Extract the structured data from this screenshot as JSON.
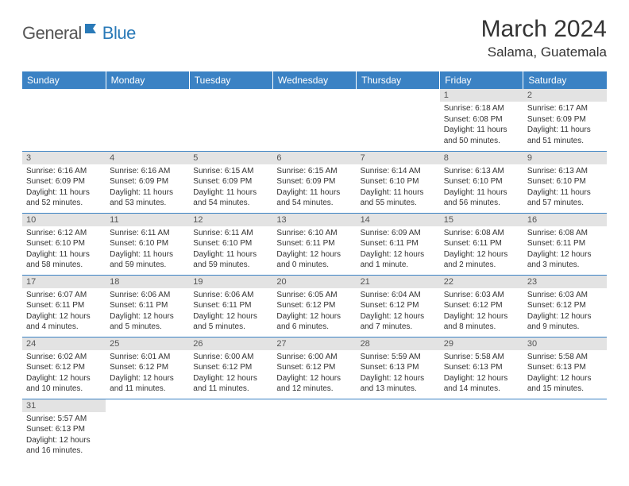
{
  "logo": {
    "general": "General",
    "blue": "Blue"
  },
  "header": {
    "month": "March 2024",
    "location": "Salama, Guatemala"
  },
  "colors": {
    "header_bg": "#3b82c4",
    "daynum_bg": "#e3e3e3",
    "border": "#3b82c4"
  },
  "days_of_week": [
    "Sunday",
    "Monday",
    "Tuesday",
    "Wednesday",
    "Thursday",
    "Friday",
    "Saturday"
  ],
  "weeks": [
    [
      null,
      null,
      null,
      null,
      null,
      {
        "n": "1",
        "sr": "Sunrise: 6:18 AM",
        "ss": "Sunset: 6:08 PM",
        "dl": "Daylight: 11 hours and 50 minutes."
      },
      {
        "n": "2",
        "sr": "Sunrise: 6:17 AM",
        "ss": "Sunset: 6:09 PM",
        "dl": "Daylight: 11 hours and 51 minutes."
      }
    ],
    [
      {
        "n": "3",
        "sr": "Sunrise: 6:16 AM",
        "ss": "Sunset: 6:09 PM",
        "dl": "Daylight: 11 hours and 52 minutes."
      },
      {
        "n": "4",
        "sr": "Sunrise: 6:16 AM",
        "ss": "Sunset: 6:09 PM",
        "dl": "Daylight: 11 hours and 53 minutes."
      },
      {
        "n": "5",
        "sr": "Sunrise: 6:15 AM",
        "ss": "Sunset: 6:09 PM",
        "dl": "Daylight: 11 hours and 54 minutes."
      },
      {
        "n": "6",
        "sr": "Sunrise: 6:15 AM",
        "ss": "Sunset: 6:09 PM",
        "dl": "Daylight: 11 hours and 54 minutes."
      },
      {
        "n": "7",
        "sr": "Sunrise: 6:14 AM",
        "ss": "Sunset: 6:10 PM",
        "dl": "Daylight: 11 hours and 55 minutes."
      },
      {
        "n": "8",
        "sr": "Sunrise: 6:13 AM",
        "ss": "Sunset: 6:10 PM",
        "dl": "Daylight: 11 hours and 56 minutes."
      },
      {
        "n": "9",
        "sr": "Sunrise: 6:13 AM",
        "ss": "Sunset: 6:10 PM",
        "dl": "Daylight: 11 hours and 57 minutes."
      }
    ],
    [
      {
        "n": "10",
        "sr": "Sunrise: 6:12 AM",
        "ss": "Sunset: 6:10 PM",
        "dl": "Daylight: 11 hours and 58 minutes."
      },
      {
        "n": "11",
        "sr": "Sunrise: 6:11 AM",
        "ss": "Sunset: 6:10 PM",
        "dl": "Daylight: 11 hours and 59 minutes."
      },
      {
        "n": "12",
        "sr": "Sunrise: 6:11 AM",
        "ss": "Sunset: 6:10 PM",
        "dl": "Daylight: 11 hours and 59 minutes."
      },
      {
        "n": "13",
        "sr": "Sunrise: 6:10 AM",
        "ss": "Sunset: 6:11 PM",
        "dl": "Daylight: 12 hours and 0 minutes."
      },
      {
        "n": "14",
        "sr": "Sunrise: 6:09 AM",
        "ss": "Sunset: 6:11 PM",
        "dl": "Daylight: 12 hours and 1 minute."
      },
      {
        "n": "15",
        "sr": "Sunrise: 6:08 AM",
        "ss": "Sunset: 6:11 PM",
        "dl": "Daylight: 12 hours and 2 minutes."
      },
      {
        "n": "16",
        "sr": "Sunrise: 6:08 AM",
        "ss": "Sunset: 6:11 PM",
        "dl": "Daylight: 12 hours and 3 minutes."
      }
    ],
    [
      {
        "n": "17",
        "sr": "Sunrise: 6:07 AM",
        "ss": "Sunset: 6:11 PM",
        "dl": "Daylight: 12 hours and 4 minutes."
      },
      {
        "n": "18",
        "sr": "Sunrise: 6:06 AM",
        "ss": "Sunset: 6:11 PM",
        "dl": "Daylight: 12 hours and 5 minutes."
      },
      {
        "n": "19",
        "sr": "Sunrise: 6:06 AM",
        "ss": "Sunset: 6:11 PM",
        "dl": "Daylight: 12 hours and 5 minutes."
      },
      {
        "n": "20",
        "sr": "Sunrise: 6:05 AM",
        "ss": "Sunset: 6:12 PM",
        "dl": "Daylight: 12 hours and 6 minutes."
      },
      {
        "n": "21",
        "sr": "Sunrise: 6:04 AM",
        "ss": "Sunset: 6:12 PM",
        "dl": "Daylight: 12 hours and 7 minutes."
      },
      {
        "n": "22",
        "sr": "Sunrise: 6:03 AM",
        "ss": "Sunset: 6:12 PM",
        "dl": "Daylight: 12 hours and 8 minutes."
      },
      {
        "n": "23",
        "sr": "Sunrise: 6:03 AM",
        "ss": "Sunset: 6:12 PM",
        "dl": "Daylight: 12 hours and 9 minutes."
      }
    ],
    [
      {
        "n": "24",
        "sr": "Sunrise: 6:02 AM",
        "ss": "Sunset: 6:12 PM",
        "dl": "Daylight: 12 hours and 10 minutes."
      },
      {
        "n": "25",
        "sr": "Sunrise: 6:01 AM",
        "ss": "Sunset: 6:12 PM",
        "dl": "Daylight: 12 hours and 11 minutes."
      },
      {
        "n": "26",
        "sr": "Sunrise: 6:00 AM",
        "ss": "Sunset: 6:12 PM",
        "dl": "Daylight: 12 hours and 11 minutes."
      },
      {
        "n": "27",
        "sr": "Sunrise: 6:00 AM",
        "ss": "Sunset: 6:12 PM",
        "dl": "Daylight: 12 hours and 12 minutes."
      },
      {
        "n": "28",
        "sr": "Sunrise: 5:59 AM",
        "ss": "Sunset: 6:13 PM",
        "dl": "Daylight: 12 hours and 13 minutes."
      },
      {
        "n": "29",
        "sr": "Sunrise: 5:58 AM",
        "ss": "Sunset: 6:13 PM",
        "dl": "Daylight: 12 hours and 14 minutes."
      },
      {
        "n": "30",
        "sr": "Sunrise: 5:58 AM",
        "ss": "Sunset: 6:13 PM",
        "dl": "Daylight: 12 hours and 15 minutes."
      }
    ],
    [
      {
        "n": "31",
        "sr": "Sunrise: 5:57 AM",
        "ss": "Sunset: 6:13 PM",
        "dl": "Daylight: 12 hours and 16 minutes."
      },
      null,
      null,
      null,
      null,
      null,
      null
    ]
  ]
}
